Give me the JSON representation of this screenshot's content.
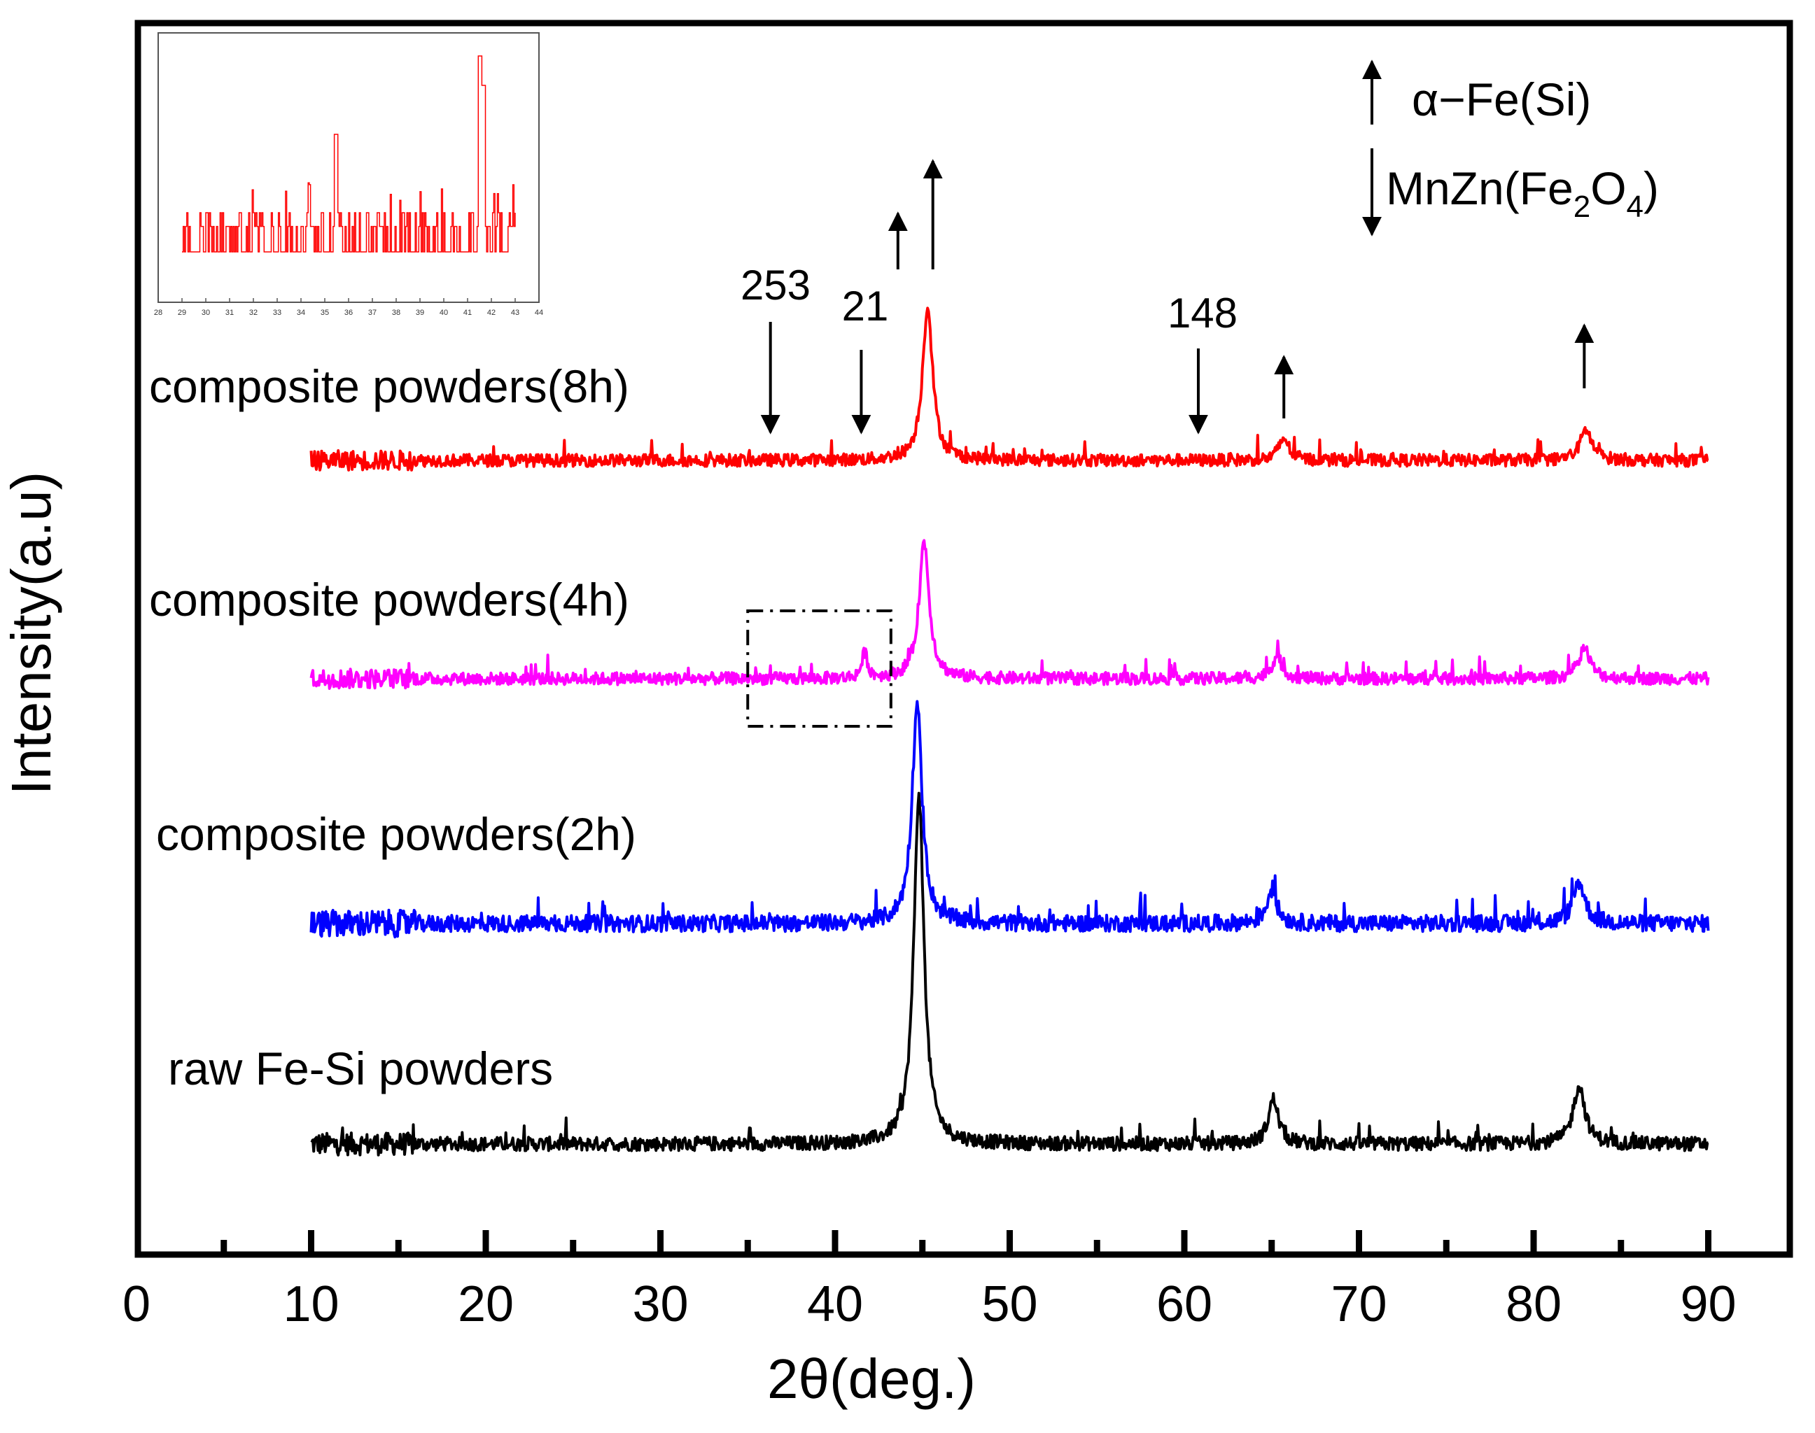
{
  "chart_data": {
    "type": "line",
    "title": "",
    "xlabel": "2θ(deg.)",
    "ylabel": "Intensity(a.u)",
    "xlim": [
      0,
      95
    ],
    "xticks": [
      0,
      10,
      20,
      30,
      40,
      50,
      60,
      70,
      80,
      90
    ],
    "xticks_minor": [
      5,
      15,
      25,
      35,
      45,
      55,
      65,
      75,
      85
    ],
    "grid": false,
    "series": [
      {
        "name": "raw Fe-Si powders",
        "label": "raw Fe-Si powders",
        "color": "#000000",
        "baseline": 0.5,
        "noise": 0.25,
        "peaks": [
          {
            "x": 44.8,
            "height": 12.5,
            "width": 0.35
          },
          {
            "x": 65.1,
            "height": 1.6,
            "width": 0.35
          },
          {
            "x": 82.6,
            "height": 2.1,
            "width": 0.4
          }
        ]
      },
      {
        "name": "composite powders(2h)",
        "label": "composite powders(2h)",
        "color": "#0000ff",
        "baseline": 0.5,
        "noise": 0.3,
        "peaks": [
          {
            "x": 44.7,
            "height": 7.8,
            "width": 0.35
          },
          {
            "x": 65.0,
            "height": 1.2,
            "width": 0.35
          },
          {
            "x": 82.6,
            "height": 1.5,
            "width": 0.4
          }
        ]
      },
      {
        "name": "composite powders(4h)",
        "label": "composite powders(4h)",
        "color": "#ff00ff",
        "baseline": 0.5,
        "noise": 0.22,
        "peaks": [
          {
            "x": 41.7,
            "height": 0.9,
            "width": 0.2
          },
          {
            "x": 45.1,
            "height": 4.9,
            "width": 0.35
          },
          {
            "x": 65.3,
            "height": 0.8,
            "width": 0.35
          },
          {
            "x": 82.9,
            "height": 1.1,
            "width": 0.4
          }
        ]
      },
      {
        "name": "composite powders(8h)",
        "label": "composite powders(8h)",
        "color": "#ff0000",
        "baseline": 0.5,
        "noise": 0.22,
        "peaks": [
          {
            "x": 45.3,
            "height": 5.5,
            "width": 0.35
          },
          {
            "x": 65.7,
            "height": 0.8,
            "width": 0.35
          },
          {
            "x": 83.0,
            "height": 1.1,
            "width": 0.4
          }
        ]
      }
    ],
    "annotations": {
      "alpha_fe_arrow_positions": [
        43.6,
        45.6,
        65.7,
        82.9
      ],
      "mnzn_arrow_positions": [
        36.3,
        41.5,
        60.8
      ],
      "peak_numbers": [
        {
          "text": "253",
          "x": 36.4
        },
        {
          "text": "21",
          "x": 41.7
        },
        {
          "text": "148",
          "x": 61.2
        }
      ],
      "dashed_box_range": [
        35.0,
        43.2
      ]
    },
    "legend": {
      "placement": "top-right",
      "alpha_fe": {
        "prefix": "α−",
        "rest": "Fe(Si)"
      },
      "mnzn": {
        "prefix": "MnZn(Fe",
        "sub1": "2",
        "mid": "O",
        "sub2": "4",
        "suffix": ")"
      }
    },
    "inset": {
      "placement": "top-left",
      "color": "#ff0000",
      "xlim": [
        28,
        44
      ],
      "xticks": [
        28,
        29,
        30,
        31,
        32,
        33,
        34,
        35,
        36,
        37,
        38,
        39,
        40,
        41,
        42,
        43,
        44
      ],
      "data_range": [
        29,
        43
      ],
      "peaks": [
        {
          "x": 35.45,
          "height": 0.6
        },
        {
          "x": 41.5,
          "height": 1.0
        },
        {
          "x": 41.65,
          "height": 0.85
        }
      ]
    }
  }
}
